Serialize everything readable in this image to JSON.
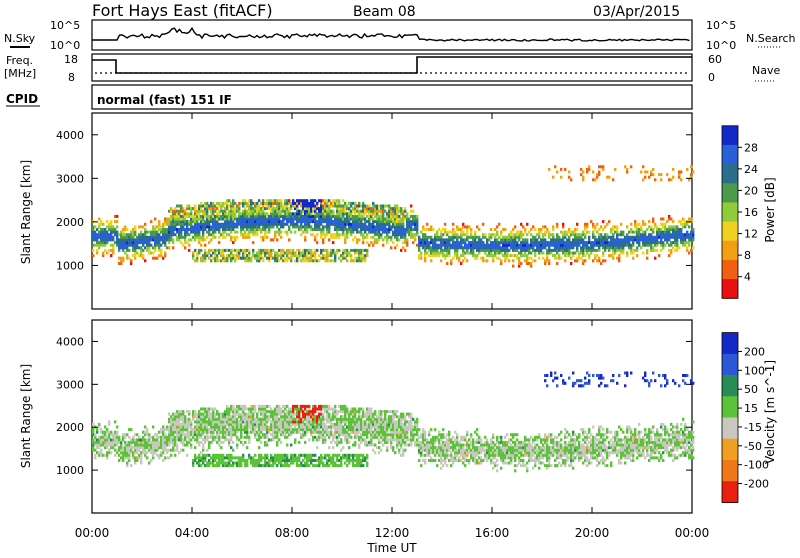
{
  "header": {
    "title": "Fort Hays East (fitACF)",
    "beam": "Beam 08",
    "date": "03/Apr/2015"
  },
  "mode_text": "normal (fast) 151 IF",
  "status_panels": {
    "nsky_label": "N.Sky",
    "nsearch_label": "N.Search",
    "freq_label": "Freq.",
    "freq_unit": "[MHz]",
    "nave_label": "Nave",
    "cpid_label": "CPID",
    "noise_ticks": [
      "10^5",
      "10^0"
    ],
    "noise_right_ticks": [
      "10^5",
      "10^0"
    ],
    "freq_ticks": [
      "18",
      "8"
    ],
    "nave_ticks": [
      "60",
      "0"
    ]
  },
  "colors": {
    "power_scale": [
      "#1428c8",
      "#2860d8",
      "#2a6e8c",
      "#4a9a4a",
      "#8fcb3a",
      "#f0d020",
      "#f0a010",
      "#f06010",
      "#e81010"
    ],
    "velocity_scale": [
      "#1428c8",
      "#2c58d4",
      "#2a8c55",
      "#5cc23a",
      "#c8c8c0",
      "#f0a020",
      "#f07818",
      "#e82010"
    ],
    "frame": "#000000"
  },
  "chart_data": [
    {
      "type": "heatmap",
      "name_panel": "power",
      "xlabel": "",
      "ylabel": "Slant Range [km]",
      "xlim": [
        0,
        24
      ],
      "ylim": [
        0,
        4500
      ],
      "yticks": [
        "1000",
        "2000",
        "3000",
        "4000"
      ],
      "colorbar": {
        "label": "Power [dB]",
        "ticks": [
          "28",
          "24",
          "20",
          "16",
          "12",
          "8",
          "4"
        ],
        "range": [
          0,
          30
        ]
      },
      "features": [
        {
          "band": "main_echo",
          "t_start": 0,
          "t_end": 24,
          "range_center_km": 1700,
          "power_peak_db": 24
        },
        {
          "band": "upper_band",
          "t_start": 3,
          "t_end": 12.5,
          "range_center_km": 2100,
          "power_peak_db": 28
        },
        {
          "band": "lower_band",
          "t_start": 4,
          "t_end": 11,
          "range_center_km": 1200,
          "power_peak_db": 20
        }
      ]
    },
    {
      "type": "heatmap",
      "name_panel": "velocity",
      "xlabel": "Time UT",
      "ylabel": "Slant Range [km]",
      "xlim": [
        0,
        24
      ],
      "ylim": [
        0,
        4500
      ],
      "xticks": [
        "00:00",
        "04:00",
        "08:00",
        "12:00",
        "16:00",
        "20:00",
        "00:00"
      ],
      "yticks": [
        "1000",
        "2000",
        "3000",
        "4000"
      ],
      "colorbar": {
        "label": "Velocity [m s^-1]",
        "ticks": [
          "200",
          "100",
          "50",
          "15",
          "-15",
          "-50",
          "-100",
          "-200"
        ],
        "range": [
          -250,
          250
        ]
      },
      "features": [
        {
          "band": "ground_scatter",
          "t_start": 0,
          "t_end": 24,
          "range_center_km": 1700,
          "velocity_ms": 0
        },
        {
          "band": "lower_green",
          "t_start": 5,
          "t_end": 10.5,
          "range_center_km": 1150,
          "velocity_ms": 50
        },
        {
          "band": "red_patch",
          "t_start": 8,
          "t_end": 9.2,
          "range_center_km": 2300,
          "velocity_ms": -200
        }
      ]
    }
  ]
}
